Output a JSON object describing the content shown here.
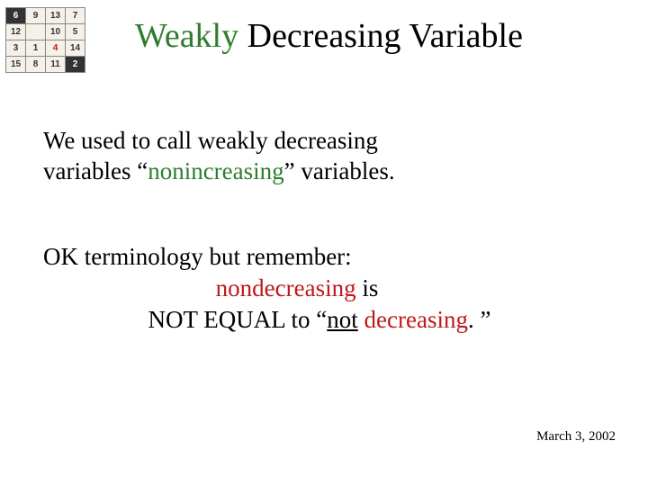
{
  "grid": {
    "rows": [
      [
        {
          "v": "6",
          "dark": true
        },
        {
          "v": "9"
        },
        {
          "v": "13"
        },
        {
          "v": "7"
        }
      ],
      [
        {
          "v": "12"
        },
        {
          "v": "",
          "empty": true
        },
        {
          "v": "10"
        },
        {
          "v": "5"
        }
      ],
      [
        {
          "v": "3"
        },
        {
          "v": "1"
        },
        {
          "v": "4",
          "red": true
        },
        {
          "v": "14"
        }
      ],
      [
        {
          "v": "15"
        },
        {
          "v": "8"
        },
        {
          "v": "11"
        },
        {
          "v": "2",
          "dark": true
        }
      ]
    ],
    "cell_bg": "#f5f0e8",
    "dark_bg": "#333333",
    "red_text": "#c01818",
    "font_size": 10
  },
  "title": {
    "prefix": "Weakly",
    "rest": " Decreasing Variable",
    "prefix_color": "#2e7d2e",
    "font_size": 38
  },
  "para1": {
    "line1": "We used to call weakly decreasing",
    "line2_pre": "variables “",
    "line2_green": "nonincreasing",
    "line2_post": "” variables.",
    "green_color": "#2e7d2e",
    "font_size": 27
  },
  "para2": {
    "line1": "OK terminology but remember:",
    "line2_pre": "",
    "line2_red": "nondecreasing",
    "line2_post": " is",
    "line3_pre": "NOT EQUAL to “",
    "line3_ul": "not",
    "line3_mid": " ",
    "line3_red": "decreasing",
    "line3_post": ". ”",
    "red_color": "#c01818",
    "font_size": 27
  },
  "date": {
    "text": "March 3, 2002",
    "font_size": 15
  },
  "colors": {
    "background": "#ffffff",
    "text": "#000000"
  }
}
